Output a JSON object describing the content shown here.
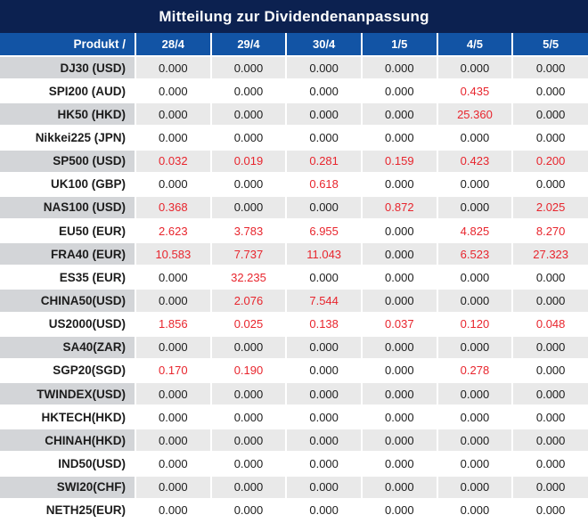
{
  "chart_data": {
    "type": "table",
    "title": "Mitteilung zur Dividendenanpassung",
    "product_header": "Produkt /",
    "date_columns": [
      "28/4",
      "29/4",
      "30/4",
      "1/5",
      "4/5",
      "5/5"
    ],
    "rows": [
      {
        "product": "DJ30 (USD)",
        "values": [
          "0.000",
          "0.000",
          "0.000",
          "0.000",
          "0.000",
          "0.000"
        ]
      },
      {
        "product": "SPI200 (AUD)",
        "values": [
          "0.000",
          "0.000",
          "0.000",
          "0.000",
          "0.435",
          "0.000"
        ]
      },
      {
        "product": "HK50 (HKD)",
        "values": [
          "0.000",
          "0.000",
          "0.000",
          "0.000",
          "25.360",
          "0.000"
        ]
      },
      {
        "product": "Nikkei225 (JPN)",
        "values": [
          "0.000",
          "0.000",
          "0.000",
          "0.000",
          "0.000",
          "0.000"
        ]
      },
      {
        "product": "SP500 (USD)",
        "values": [
          "0.032",
          "0.019",
          "0.281",
          "0.159",
          "0.423",
          "0.200"
        ]
      },
      {
        "product": "UK100 (GBP)",
        "values": [
          "0.000",
          "0.000",
          "0.618",
          "0.000",
          "0.000",
          "0.000"
        ]
      },
      {
        "product": "NAS100 (USD)",
        "values": [
          "0.368",
          "0.000",
          "0.000",
          "0.872",
          "0.000",
          "2.025"
        ]
      },
      {
        "product": "EU50 (EUR)",
        "values": [
          "2.623",
          "3.783",
          "6.955",
          "0.000",
          "4.825",
          "8.270"
        ]
      },
      {
        "product": "FRA40 (EUR)",
        "values": [
          "10.583",
          "7.737",
          "11.043",
          "0.000",
          "6.523",
          "27.323"
        ]
      },
      {
        "product": "ES35 (EUR)",
        "values": [
          "0.000",
          "32.235",
          "0.000",
          "0.000",
          "0.000",
          "0.000"
        ]
      },
      {
        "product": "CHINA50(USD)",
        "values": [
          "0.000",
          "2.076",
          "7.544",
          "0.000",
          "0.000",
          "0.000"
        ]
      },
      {
        "product": "US2000(USD)",
        "values": [
          "1.856",
          "0.025",
          "0.138",
          "0.037",
          "0.120",
          "0.048"
        ]
      },
      {
        "product": "SA40(ZAR)",
        "values": [
          "0.000",
          "0.000",
          "0.000",
          "0.000",
          "0.000",
          "0.000"
        ]
      },
      {
        "product": "SGP20(SGD)",
        "values": [
          "0.170",
          "0.190",
          "0.000",
          "0.000",
          "0.278",
          "0.000"
        ]
      },
      {
        "product": "TWINDEX(USD)",
        "values": [
          "0.000",
          "0.000",
          "0.000",
          "0.000",
          "0.000",
          "0.000"
        ]
      },
      {
        "product": "HKTECH(HKD)",
        "values": [
          "0.000",
          "0.000",
          "0.000",
          "0.000",
          "0.000",
          "0.000"
        ]
      },
      {
        "product": "CHINAH(HKD)",
        "values": [
          "0.000",
          "0.000",
          "0.000",
          "0.000",
          "0.000",
          "0.000"
        ]
      },
      {
        "product": "IND50(USD)",
        "values": [
          "0.000",
          "0.000",
          "0.000",
          "0.000",
          "0.000",
          "0.000"
        ]
      },
      {
        "product": "SWI20(CHF)",
        "values": [
          "0.000",
          "0.000",
          "0.000",
          "0.000",
          "0.000",
          "0.000"
        ]
      },
      {
        "product": "NETH25(EUR)",
        "values": [
          "0.000",
          "0.000",
          "0.000",
          "0.000",
          "0.000",
          "0.000"
        ]
      }
    ]
  },
  "colors": {
    "title_bg": "#0c2150",
    "header_bg": "#1254a5",
    "row_label_alt_bg": "#d3d5d8",
    "row_value_alt_bg": "#e9e9e9",
    "row_white_bg": "#ffffff",
    "value_zero": "#1c1c1c",
    "value_nonzero": "#e8252d"
  }
}
